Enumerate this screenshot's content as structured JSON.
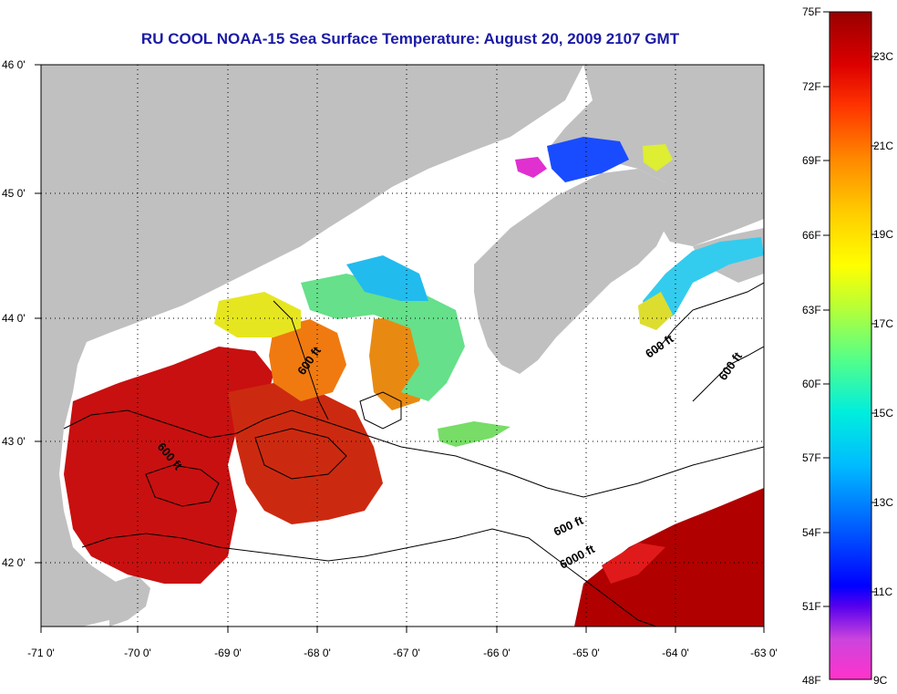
{
  "title": "RU COOL  NOAA-15  Sea Surface Temperature:  August 20, 2009 2107 GMT",
  "map": {
    "lon_ticks": [
      "-71 0'",
      "-70 0'",
      "-69 0'",
      "-68 0'",
      "-67 0'",
      "-66 0'",
      "-65 0'",
      "-64 0'",
      "-63 0'"
    ],
    "lat_ticks": [
      "46 0'",
      "45 0'",
      "44 0'",
      "43 0'",
      "42 0'"
    ],
    "contour_labels": [
      "600 ft",
      "600 ft",
      "600 ft",
      "600 ft",
      "600 ft",
      "6000 ft"
    ],
    "colors": {
      "land": "#c0c0c0",
      "water_nodata": "#ffffff",
      "grid": "#000000"
    }
  },
  "colorbar": {
    "fahrenheit": [
      "75F",
      "72F",
      "69F",
      "66F",
      "63F",
      "60F",
      "57F",
      "54F",
      "51F",
      "48F"
    ],
    "celsius": [
      "23C",
      "21C",
      "19C",
      "17C",
      "15C",
      "13C",
      "11C",
      "9C"
    ],
    "gradient": [
      "#ff33cc",
      "#cc33cc",
      "#0000ff",
      "#0066ff",
      "#00ccff",
      "#00ffcc",
      "#66ff66",
      "#ccff33",
      "#ffff00",
      "#ffcc00",
      "#ff9900",
      "#ff6600",
      "#ff0000",
      "#cc0000",
      "#990000"
    ]
  }
}
